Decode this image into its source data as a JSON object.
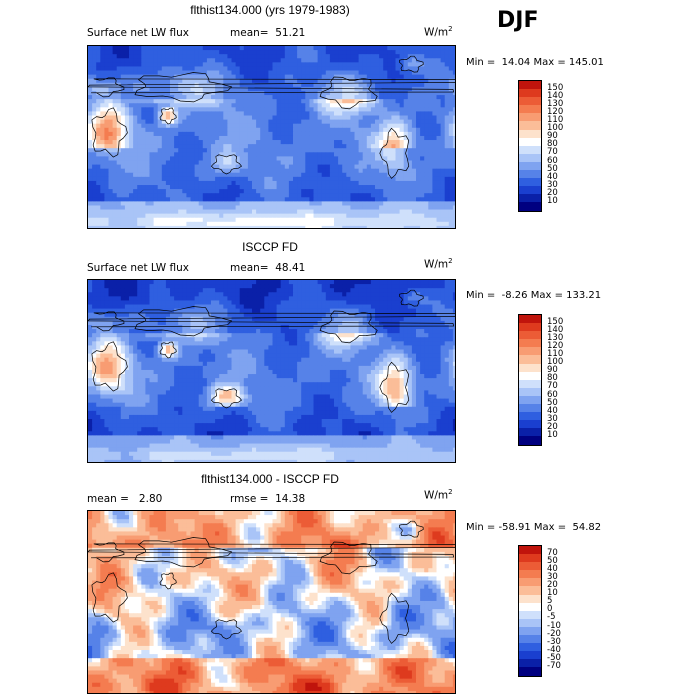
{
  "season": "DJF",
  "units_base": "W/m",
  "units_exp": "2",
  "panels": [
    {
      "title": "flthist134.000 (yrs 1979-1983)",
      "left_label": "Surface net LW flux",
      "center_label": "mean=  51.21",
      "minmax": "Min =  14.04 Max = 145.01",
      "levels": [
        "150",
        "140",
        "130",
        "120",
        "110",
        "100",
        "90",
        "80",
        "70",
        "60",
        "50",
        "40",
        "30",
        "20",
        "10"
      ],
      "colors": [
        "#8b0000",
        "#c0140c",
        "#de3a1e",
        "#ec5c36",
        "#f47c50",
        "#f89c72",
        "#fbbd98",
        "#fde2cc",
        "#ffffff",
        "#cfe0fb",
        "#a9c4f7",
        "#7fa3f0",
        "#5682e8",
        "#2f5fe0",
        "#1a3fcf",
        "#0a20a8",
        "#000080"
      ],
      "field": "model"
    },
    {
      "title": "ISCCP FD",
      "left_label": "Surface net LW flux",
      "center_label": "mean=  48.41",
      "minmax": "Min =  -8.26 Max = 133.21",
      "levels": [
        "150",
        "140",
        "130",
        "120",
        "110",
        "100",
        "90",
        "80",
        "70",
        "60",
        "50",
        "40",
        "30",
        "20",
        "10"
      ],
      "colors": [
        "#8b0000",
        "#c0140c",
        "#de3a1e",
        "#ec5c36",
        "#f47c50",
        "#f89c72",
        "#fbbd98",
        "#fde2cc",
        "#ffffff",
        "#cfe0fb",
        "#a9c4f7",
        "#7fa3f0",
        "#5682e8",
        "#2f5fe0",
        "#1a3fcf",
        "#0a20a8",
        "#000080"
      ],
      "field": "obs"
    },
    {
      "title": "flthist134.000 - ISCCP FD",
      "left_label": "mean =   2.80",
      "center_label": "rmse =  14.38",
      "minmax": "Min = -58.91 Max =  54.82",
      "levels": [
        "70",
        "50",
        "40",
        "30",
        "20",
        "10",
        "5",
        "0",
        "-5",
        "-10",
        "-20",
        "-30",
        "-40",
        "-50",
        "-70"
      ],
      "colors": [
        "#8b0000",
        "#c0140c",
        "#de3a1e",
        "#ec5c36",
        "#f47c50",
        "#f89c72",
        "#fbbd98",
        "#fde2cc",
        "#ffffff",
        "#cfe0fb",
        "#a9c4f7",
        "#7fa3f0",
        "#5682e8",
        "#2f5fe0",
        "#1a3fcf",
        "#0a20a8",
        "#000080"
      ],
      "field": "diff"
    }
  ]
}
